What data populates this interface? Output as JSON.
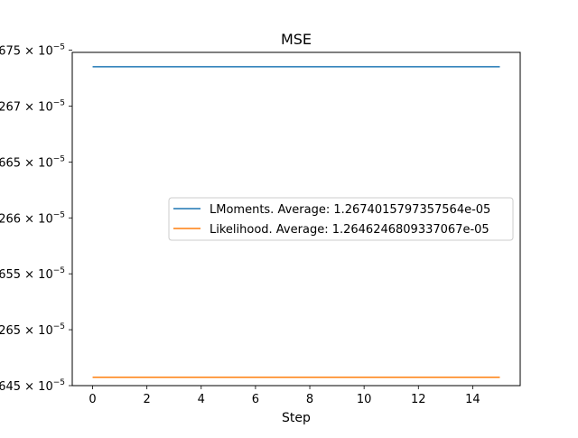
{
  "chart_data": {
    "type": "line",
    "title": "MSE",
    "xlabel": "Step",
    "ylabel": "",
    "x": [
      0,
      1,
      2,
      3,
      4,
      5,
      6,
      7,
      8,
      9,
      10,
      11,
      12,
      13,
      14,
      15
    ],
    "xlim": [
      -0.75,
      15.75
    ],
    "ylim": [
      1.26455e-05,
      1.26753e-05
    ],
    "grid": false,
    "legend_position": "center-right",
    "x_ticks": [
      {
        "value": 0,
        "label": "0"
      },
      {
        "value": 2,
        "label": "2"
      },
      {
        "value": 4,
        "label": "4"
      },
      {
        "value": 6,
        "label": "6"
      },
      {
        "value": 8,
        "label": "8"
      },
      {
        "value": 10,
        "label": "10"
      },
      {
        "value": 12,
        "label": "12"
      },
      {
        "value": 14,
        "label": "14"
      }
    ],
    "y_ticks": [
      {
        "value": 1.26455e-05,
        "label": "645 × 10",
        "exp": "−5"
      },
      {
        "value": 1.26505e-05,
        "label": "265 × 10",
        "exp": "−5"
      },
      {
        "value": 1.26555e-05,
        "label": "655 × 10",
        "exp": "−5"
      },
      {
        "value": 1.26605e-05,
        "label": "266 × 10",
        "exp": "−5"
      },
      {
        "value": 1.26655e-05,
        "label": "665 × 10",
        "exp": "−5"
      },
      {
        "value": 1.26705e-05,
        "label": "267 × 10",
        "exp": "−5"
      },
      {
        "value": 1.26755e-05,
        "label": "675 × 10",
        "exp": "−5"
      }
    ],
    "series": [
      {
        "name": "LMoments. Average: 1.2674015797357564e-05",
        "color": "#1f77b4",
        "values": [
          1.2674015797357564e-05,
          1.2674015797357564e-05,
          1.2674015797357564e-05,
          1.2674015797357564e-05,
          1.2674015797357564e-05,
          1.2674015797357564e-05,
          1.2674015797357564e-05,
          1.2674015797357564e-05,
          1.2674015797357564e-05,
          1.2674015797357564e-05,
          1.2674015797357564e-05,
          1.2674015797357564e-05,
          1.2674015797357564e-05,
          1.2674015797357564e-05,
          1.2674015797357564e-05,
          1.2674015797357564e-05
        ]
      },
      {
        "name": "Likelihood. Average: 1.2646246809337067e-05",
        "color": "#ff7f0e",
        "values": [
          1.2646246809337067e-05,
          1.2646246809337067e-05,
          1.2646246809337067e-05,
          1.2646246809337067e-05,
          1.2646246809337067e-05,
          1.2646246809337067e-05,
          1.2646246809337067e-05,
          1.2646246809337067e-05,
          1.2646246809337067e-05,
          1.2646246809337067e-05,
          1.2646246809337067e-05,
          1.2646246809337067e-05,
          1.2646246809337067e-05,
          1.2646246809337067e-05,
          1.2646246809337067e-05,
          1.2646246809337067e-05
        ]
      }
    ]
  }
}
